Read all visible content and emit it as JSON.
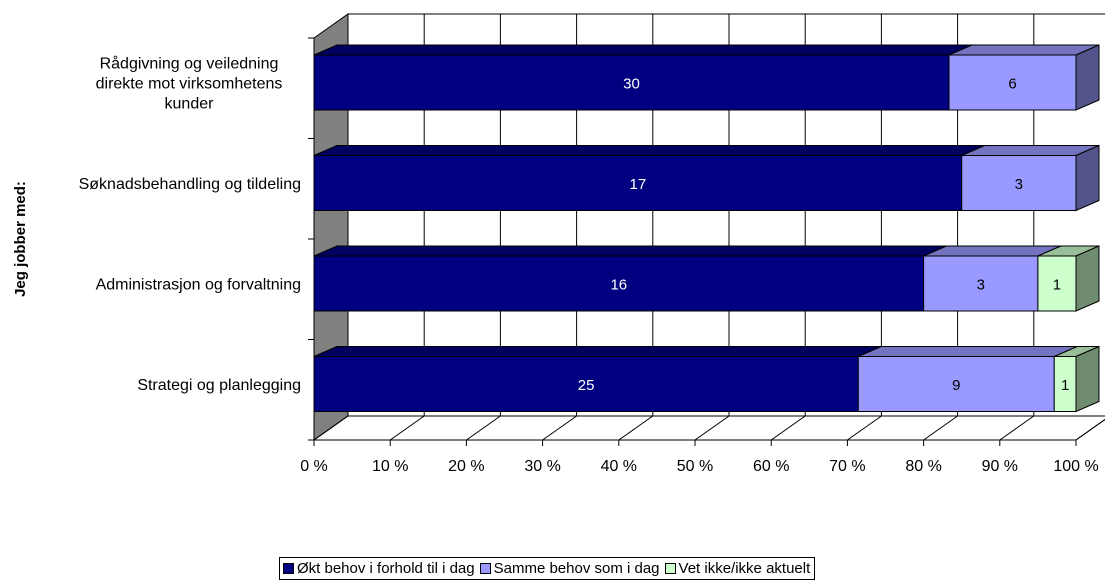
{
  "chart_data": {
    "type": "bar",
    "orientation": "horizontal",
    "stacked": "100%",
    "three_d": true,
    "ylabel": "Jeg jobber med:",
    "xlabel": "",
    "xlim": [
      0,
      100
    ],
    "x_ticks": [
      "0 %",
      "10 %",
      "20 %",
      "30 %",
      "40 %",
      "50 %",
      "60 %",
      "70 %",
      "80 %",
      "90 %",
      "100 %"
    ],
    "categories": [
      [
        "Rådgivning og veiledning",
        "direkte mot virksomhetens",
        "kunder"
      ],
      [
        "Søknadsbehandling og tildeling"
      ],
      [
        "Administrasjon og forvaltning"
      ],
      [
        "Strategi og planlegging"
      ]
    ],
    "series": [
      {
        "name": "Økt behov i forhold til i dag",
        "values": [
          30,
          17,
          16,
          25
        ],
        "color": "#000080",
        "label_color": "#ffffff"
      },
      {
        "name": "Samme behov som i dag",
        "values": [
          6,
          3,
          3,
          9
        ],
        "color": "#9999ff",
        "label_color": "#000000"
      },
      {
        "name": "Vet ikke/ikke aktuelt",
        "values": [
          0,
          0,
          1,
          1
        ],
        "color": "#ccffcc",
        "label_color": "#000000"
      }
    ],
    "grid": true,
    "legend_position": "bottom"
  }
}
